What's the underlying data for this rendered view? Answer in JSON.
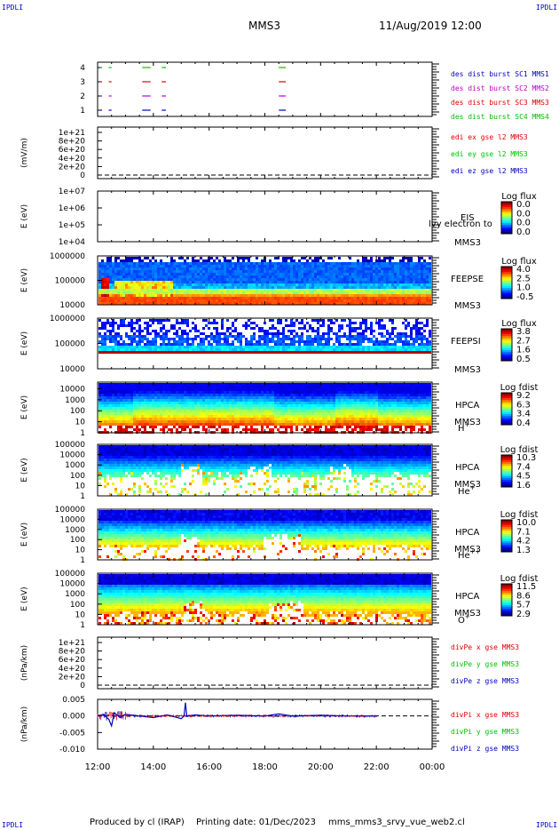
{
  "corners": {
    "tl": "IPDLI",
    "tr": "IPDLI",
    "bl": "IPDLI",
    "br": "IPDLI"
  },
  "header": {
    "spacecraft": "MMS3",
    "datetime": "11/Aug/2019 12:00"
  },
  "footer": {
    "produced": "Produced by cl (IRAP)",
    "printed": "Printing date: 01/Dec/2023",
    "file": "mms_mms3_srvy_vue_web2.cl"
  },
  "x_axis": {
    "ticks": [
      "12:00",
      "14:00",
      "16:00",
      "18:00",
      "20:00",
      "22:00",
      "00:00"
    ]
  },
  "colors": {
    "red": "#e00000",
    "green": "#00c000",
    "blue": "#0000c0",
    "magenta": "#c000c0"
  },
  "chart_data": [
    {
      "type": "scatter",
      "panel": "burst",
      "yticks": [
        "4",
        "3",
        "2",
        "1"
      ],
      "legend": [
        {
          "text": "des dist burst SC1 MMS1",
          "color": "#0000c0"
        },
        {
          "text": "des dist burst SC2 MMS2",
          "color": "#c000c0"
        },
        {
          "text": "des dist burst SC3 MMS3",
          "color": "#e00000"
        },
        {
          "text": "des dist burst SC4 MMS4",
          "color": "#00c000"
        }
      ],
      "series": [
        {
          "y": 4,
          "color": "#00c000",
          "intervals": [
            [
              12.1,
              12.15
            ],
            [
              12.4,
              12.5
            ],
            [
              13.6,
              13.9
            ],
            [
              14.3,
              14.45
            ],
            [
              18.5,
              18.75
            ]
          ]
        },
        {
          "y": 3,
          "color": "#e00000",
          "intervals": [
            [
              12.1,
              12.15
            ],
            [
              12.4,
              12.5
            ],
            [
              13.6,
              13.9
            ],
            [
              14.3,
              14.45
            ],
            [
              18.5,
              18.75
            ]
          ]
        },
        {
          "y": 2,
          "color": "#c000c0",
          "intervals": [
            [
              12.1,
              12.15
            ],
            [
              12.4,
              12.5
            ],
            [
              13.6,
              13.9
            ],
            [
              14.3,
              14.45
            ],
            [
              18.5,
              18.75
            ]
          ]
        },
        {
          "y": 1,
          "color": "#0000c0",
          "intervals": [
            [
              12.1,
              12.15
            ],
            [
              12.4,
              12.5
            ],
            [
              13.6,
              13.9
            ],
            [
              14.3,
              14.45
            ],
            [
              18.5,
              18.75
            ]
          ]
        }
      ]
    },
    {
      "type": "line",
      "panel": "edi",
      "ylabel": "(mV/m)",
      "yticks": [
        "1e+21",
        "8e+20",
        "6e+20",
        "4e+20",
        "2e+20",
        "0"
      ],
      "legend": [
        {
          "text": "edi ex gse l2 MMS3",
          "color": "#e00000"
        },
        {
          "text": "edi ey gse l2 MMS3",
          "color": "#00c000"
        },
        {
          "text": "edi ez gse l2 MMS3",
          "color": "#0000c0"
        }
      ]
    },
    {
      "type": "heatmap",
      "panel": "eis",
      "ylabel": "E (eV)",
      "ylim": [
        10000,
        10000000
      ],
      "log": true,
      "yticks": [
        "1e+07",
        "1e+06",
        "1e+05",
        "1e+04"
      ],
      "instrument": "EIS",
      "spacecraft": "MMS3",
      "overlay": "lvy electron to",
      "cbar_title": "Log flux",
      "cbar_ticks": [
        "0.0",
        "0.0",
        "0.0",
        "0.0"
      ],
      "cells": []
    },
    {
      "type": "heatmap",
      "panel": "feepse",
      "ylabel": "E (eV)",
      "ylim": [
        10000,
        1000000
      ],
      "log": true,
      "yticks": [
        "1000000",
        "100000",
        "10000"
      ],
      "instrument": "FEEPSE",
      "spacecraft": "MMS3",
      "cbar_title": "Log flux",
      "cbar_ticks": [
        "4.0",
        "2.5",
        "1.0",
        "-0.5"
      ]
    },
    {
      "type": "heatmap",
      "panel": "feepsi",
      "ylabel": "E (eV)",
      "ylim": [
        10000,
        1000000
      ],
      "log": true,
      "yticks": [
        "1000000",
        "100000",
        "10000"
      ],
      "instrument": "FEEPSI",
      "spacecraft": "MMS3",
      "cbar_title": "Log flux",
      "cbar_ticks": [
        "3.8",
        "2.7",
        "1.6",
        "0.5"
      ]
    },
    {
      "type": "heatmap",
      "panel": "hpca_h",
      "ylabel": "E (eV)",
      "ylim": [
        1,
        40000
      ],
      "log": true,
      "yticks": [
        "10000",
        "1000",
        "100",
        "10",
        "1"
      ],
      "instrument": "HPCA",
      "spacecraft": "MMS3",
      "species": "H",
      "charge": "+",
      "cbar_title": "Log fdist",
      "cbar_ticks": [
        "9.2",
        "6.3",
        "3.4",
        "0.4"
      ]
    },
    {
      "type": "heatmap",
      "panel": "hpca_he",
      "ylabel": "E (eV)",
      "ylim": [
        1,
        100000
      ],
      "log": true,
      "yticks": [
        "100000",
        "10000",
        "1000",
        "100",
        "10",
        "1"
      ],
      "instrument": "HPCA",
      "spacecraft": "MMS3",
      "species": "He",
      "charge": "+",
      "cbar_title": "Log fdist",
      "cbar_ticks": [
        "10.3",
        "7.4",
        "4.5",
        "1.6"
      ]
    },
    {
      "type": "heatmap",
      "panel": "hpca_hepp",
      "ylabel": "E (eV)",
      "ylim": [
        1,
        100000
      ],
      "log": true,
      "yticks": [
        "100000",
        "10000",
        "1000",
        "100",
        "10",
        "1"
      ],
      "instrument": "HPCA",
      "spacecraft": "MMS3",
      "species": "He",
      "charge": "++",
      "cbar_title": "Log fdist",
      "cbar_ticks": [
        "10.0",
        "7.1",
        "4.2",
        "1.3"
      ]
    },
    {
      "type": "heatmap",
      "panel": "hpca_o",
      "ylabel": "E (eV)",
      "ylim": [
        1,
        100000
      ],
      "log": true,
      "yticks": [
        "100000",
        "10000",
        "1000",
        "100",
        "10",
        "1"
      ],
      "instrument": "HPCA",
      "spacecraft": "MMS3",
      "species": "O",
      "charge": "+",
      "cbar_title": "Log fdist",
      "cbar_ticks": [
        "11.5",
        "8.6",
        "5.7",
        "2.9"
      ]
    },
    {
      "type": "line",
      "panel": "divpe",
      "ylabel": "(nPa/km)",
      "yticks": [
        "1e+21",
        "8e+20",
        "6e+20",
        "4e+20",
        "2e+20",
        "0"
      ],
      "legend": [
        {
          "text": "divPe x gse MMS3",
          "color": "#e00000"
        },
        {
          "text": "divPe y gse MMS3",
          "color": "#00c000"
        },
        {
          "text": "divPe z gse MMS3",
          "color": "#0000c0"
        }
      ]
    },
    {
      "type": "line",
      "panel": "divpi",
      "ylabel": "(nPa/km)",
      "ylim": [
        -0.01,
        0.005
      ],
      "yticks": [
        "0.005",
        "0.000",
        "-0.005",
        "-0.010"
      ],
      "legend": [
        {
          "text": "divPi x gse MMS3",
          "color": "#e00000"
        },
        {
          "text": "divPi y gse MMS3",
          "color": "#00c000"
        },
        {
          "text": "divPi z gse MMS3",
          "color": "#0000c0"
        }
      ],
      "series": [
        {
          "name": "z",
          "x": [
            12.0,
            12.2,
            12.4,
            12.5,
            12.6,
            12.8,
            13.0,
            13.5,
            14.0,
            14.5,
            15.0,
            15.1,
            15.15,
            15.2,
            15.5,
            16.0,
            17.0,
            18.0,
            18.5,
            19.0,
            20.0,
            21.0,
            22.0
          ],
          "y": [
            0.0,
            0.0005,
            -0.001,
            -0.003,
            0.001,
            -0.0005,
            0.0005,
            0.0,
            -0.0005,
            0.0003,
            -0.0008,
            0.0,
            0.004,
            0.0,
            0.0003,
            0.0,
            0.0002,
            0.0,
            0.0006,
            0.0,
            0.0002,
            0.0,
            0.0
          ]
        }
      ]
    }
  ]
}
